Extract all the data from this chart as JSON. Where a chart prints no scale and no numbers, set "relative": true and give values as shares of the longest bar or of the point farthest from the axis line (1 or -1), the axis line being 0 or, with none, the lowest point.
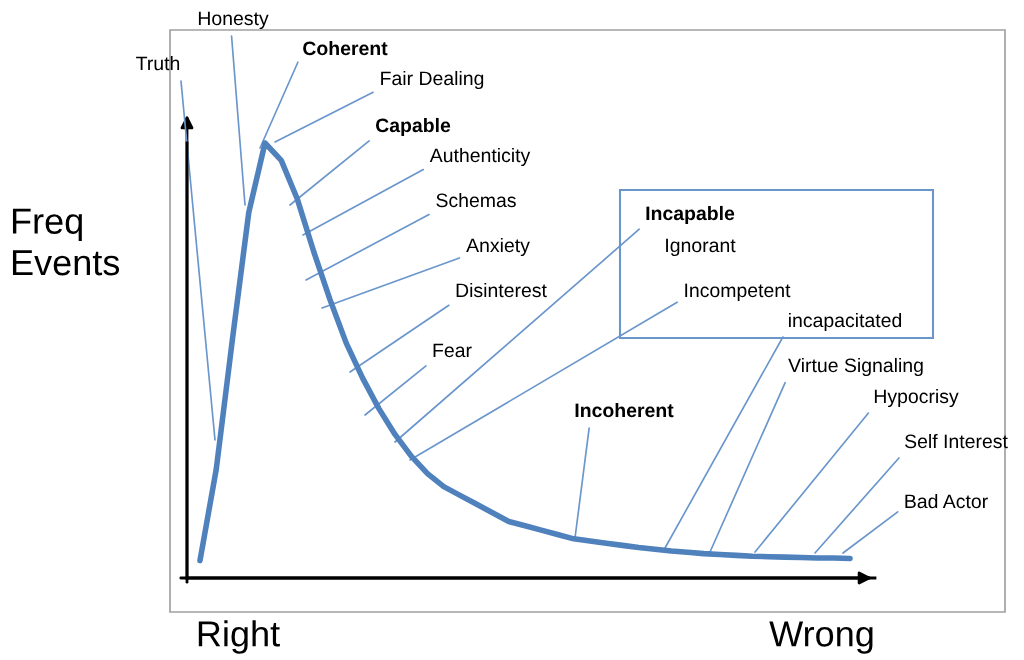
{
  "chart_data": {
    "type": "line",
    "relative": true,
    "ylabel": "Freq\nEvents",
    "categories": [
      null,
      null,
      null,
      null,
      null,
      null,
      null,
      null,
      null,
      null,
      null,
      null,
      null,
      null,
      null,
      null,
      null,
      null,
      null,
      null,
      null,
      null,
      null,
      null,
      null,
      null,
      null,
      null,
      null,
      null,
      null,
      null,
      null,
      null,
      null,
      null,
      null,
      null,
      null,
      null,
      null
    ],
    "series": [
      {
        "color": "#4f81bd",
        "values": [
          0.04,
          0.25,
          0.55,
          0.84,
          1.0,
          0.96,
          0.87,
          0.75,
          0.64,
          0.54,
          0.46,
          0.39,
          0.33,
          0.28,
          0.24,
          0.21,
          0.19,
          0.17,
          0.15,
          0.13,
          0.12,
          0.11,
          0.1,
          0.09,
          0.085,
          0.08,
          0.075,
          0.07,
          0.066,
          0.062,
          0.059,
          0.056,
          0.054,
          0.052,
          0.05,
          0.049,
          0.048,
          0.047,
          0.046,
          0.046,
          0.045
        ]
      }
    ],
    "annotations": [
      "Truth",
      "Honesty",
      "Coherent",
      "Fair Dealing",
      "Capable",
      "Authenticity",
      "Schemas",
      "Anxiety",
      "Disinterest",
      "Fear",
      "Incapable",
      "Ignorant",
      "Incompetent",
      "incapacitated",
      "Incoherent",
      "Virtue Signaling",
      "Hypocrisy",
      "Self Interest",
      "Bad Actor",
      "Right",
      "Wrong"
    ]
  }
}
